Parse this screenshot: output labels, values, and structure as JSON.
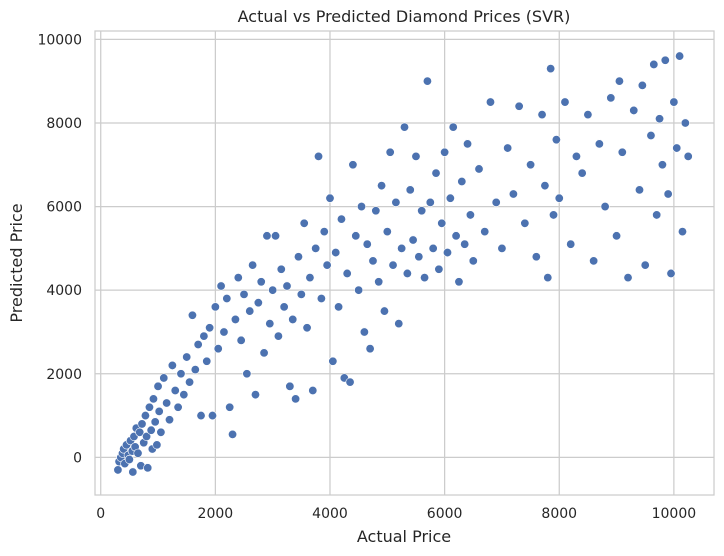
{
  "chart_data": {
    "type": "scatter",
    "title": "Actual vs Predicted Diamond Prices (SVR)",
    "xlabel": "Actual Price",
    "ylabel": "Predicted Price",
    "xlim": [
      -100,
      10700
    ],
    "ylim": [
      -900,
      10200
    ],
    "xticks": [
      0,
      2000,
      4000,
      6000,
      8000,
      10000
    ],
    "yticks": [
      0,
      2000,
      4000,
      6000,
      8000,
      10000
    ],
    "grid": true,
    "colors": {
      "marker": "#4c72b0",
      "marker_edge": "#ffffff",
      "grid": "#cccccc",
      "spine": "#cccccc",
      "text": "#262626"
    },
    "series": [
      {
        "points": [
          [
            300,
            -300
          ],
          [
            320,
            -100
          ],
          [
            350,
            0
          ],
          [
            380,
            100
          ],
          [
            400,
            200
          ],
          [
            420,
            -150
          ],
          [
            450,
            300
          ],
          [
            480,
            50
          ],
          [
            500,
            -50
          ],
          [
            520,
            400
          ],
          [
            550,
            150
          ],
          [
            560,
            -350
          ],
          [
            580,
            500
          ],
          [
            600,
            250
          ],
          [
            620,
            700
          ],
          [
            650,
            100
          ],
          [
            680,
            600
          ],
          [
            700,
            -200
          ],
          [
            720,
            800
          ],
          [
            750,
            350
          ],
          [
            780,
            1000
          ],
          [
            800,
            500
          ],
          [
            820,
            -250
          ],
          [
            850,
            1200
          ],
          [
            880,
            650
          ],
          [
            900,
            200
          ],
          [
            920,
            1400
          ],
          [
            950,
            850
          ],
          [
            980,
            300
          ],
          [
            1000,
            1700
          ],
          [
            1020,
            1100
          ],
          [
            1050,
            600
          ],
          [
            1100,
            1900
          ],
          [
            1150,
            1300
          ],
          [
            1200,
            900
          ],
          [
            1250,
            2200
          ],
          [
            1300,
            1600
          ],
          [
            1350,
            1200
          ],
          [
            1400,
            2000
          ],
          [
            1450,
            1500
          ],
          [
            1500,
            2400
          ],
          [
            1550,
            1800
          ],
          [
            1600,
            3400
          ],
          [
            1650,
            2100
          ],
          [
            1700,
            2700
          ],
          [
            1750,
            1000
          ],
          [
            1800,
            2900
          ],
          [
            1850,
            2300
          ],
          [
            1900,
            3100
          ],
          [
            1950,
            1000
          ],
          [
            2000,
            3600
          ],
          [
            2050,
            2600
          ],
          [
            2100,
            4100
          ],
          [
            2150,
            3000
          ],
          [
            2200,
            3800
          ],
          [
            2250,
            1200
          ],
          [
            2300,
            550
          ],
          [
            2350,
            3300
          ],
          [
            2400,
            4300
          ],
          [
            2450,
            2800
          ],
          [
            2500,
            3900
          ],
          [
            2550,
            2000
          ],
          [
            2600,
            3500
          ],
          [
            2650,
            4600
          ],
          [
            2700,
            1500
          ],
          [
            2750,
            3700
          ],
          [
            2800,
            4200
          ],
          [
            2850,
            2500
          ],
          [
            2900,
            5300
          ],
          [
            2950,
            3200
          ],
          [
            3000,
            4000
          ],
          [
            3050,
            5300
          ],
          [
            3100,
            2900
          ],
          [
            3150,
            4500
          ],
          [
            3200,
            3600
          ],
          [
            3250,
            4100
          ],
          [
            3300,
            1700
          ],
          [
            3350,
            3300
          ],
          [
            3400,
            1400
          ],
          [
            3450,
            4800
          ],
          [
            3500,
            3900
          ],
          [
            3550,
            5600
          ],
          [
            3600,
            3100
          ],
          [
            3650,
            4300
          ],
          [
            3700,
            1600
          ],
          [
            3750,
            5000
          ],
          [
            3800,
            7200
          ],
          [
            3850,
            3800
          ],
          [
            3900,
            5400
          ],
          [
            3950,
            4600
          ],
          [
            4000,
            6200
          ],
          [
            4050,
            2300
          ],
          [
            4100,
            4900
          ],
          [
            4150,
            3600
          ],
          [
            4200,
            5700
          ],
          [
            4250,
            1900
          ],
          [
            4300,
            4400
          ],
          [
            4350,
            1800
          ],
          [
            4400,
            7000
          ],
          [
            4450,
            5300
          ],
          [
            4500,
            4000
          ],
          [
            4550,
            6000
          ],
          [
            4600,
            3000
          ],
          [
            4650,
            5100
          ],
          [
            4700,
            2600
          ],
          [
            4750,
            4700
          ],
          [
            4800,
            5900
          ],
          [
            4850,
            4200
          ],
          [
            4900,
            6500
          ],
          [
            4950,
            3500
          ],
          [
            5000,
            5400
          ],
          [
            5050,
            7300
          ],
          [
            5100,
            4600
          ],
          [
            5150,
            6100
          ],
          [
            5200,
            3200
          ],
          [
            5250,
            5000
          ],
          [
            5300,
            7900
          ],
          [
            5350,
            4400
          ],
          [
            5400,
            6400
          ],
          [
            5450,
            5200
          ],
          [
            5500,
            7200
          ],
          [
            5550,
            4800
          ],
          [
            5600,
            5900
          ],
          [
            5650,
            4300
          ],
          [
            5700,
            9000
          ],
          [
            5750,
            6100
          ],
          [
            5800,
            5000
          ],
          [
            5850,
            6800
          ],
          [
            5900,
            4500
          ],
          [
            5950,
            5600
          ],
          [
            6000,
            7300
          ],
          [
            6050,
            4900
          ],
          [
            6100,
            6200
          ],
          [
            6150,
            7900
          ],
          [
            6200,
            5300
          ],
          [
            6250,
            4200
          ],
          [
            6300,
            6600
          ],
          [
            6350,
            5100
          ],
          [
            6400,
            7500
          ],
          [
            6450,
            5800
          ],
          [
            6500,
            4700
          ],
          [
            6600,
            6900
          ],
          [
            6700,
            5400
          ],
          [
            6800,
            8500
          ],
          [
            6900,
            6100
          ],
          [
            7000,
            5000
          ],
          [
            7100,
            7400
          ],
          [
            7200,
            6300
          ],
          [
            7300,
            8400
          ],
          [
            7400,
            5600
          ],
          [
            7500,
            7000
          ],
          [
            7600,
            4800
          ],
          [
            7700,
            8200
          ],
          [
            7750,
            6500
          ],
          [
            7800,
            4300
          ],
          [
            7850,
            9300
          ],
          [
            7900,
            5800
          ],
          [
            7950,
            7600
          ],
          [
            8000,
            6200
          ],
          [
            8100,
            8500
          ],
          [
            8200,
            5100
          ],
          [
            8300,
            7200
          ],
          [
            8400,
            6800
          ],
          [
            8500,
            8200
          ],
          [
            8600,
            4700
          ],
          [
            8700,
            7500
          ],
          [
            8800,
            6000
          ],
          [
            8900,
            8600
          ],
          [
            9000,
            5300
          ],
          [
            9050,
            9000
          ],
          [
            9100,
            7300
          ],
          [
            9200,
            4300
          ],
          [
            9300,
            8300
          ],
          [
            9400,
            6400
          ],
          [
            9450,
            8900
          ],
          [
            9500,
            4600
          ],
          [
            9600,
            7700
          ],
          [
            9650,
            9400
          ],
          [
            9700,
            5800
          ],
          [
            9750,
            8100
          ],
          [
            9800,
            7000
          ],
          [
            9850,
            9500
          ],
          [
            9900,
            6300
          ],
          [
            9950,
            4400
          ],
          [
            10000,
            8500
          ],
          [
            10050,
            7400
          ],
          [
            10100,
            9600
          ],
          [
            10150,
            5400
          ],
          [
            10200,
            8000
          ],
          [
            10250,
            7200
          ]
        ]
      }
    ]
  }
}
